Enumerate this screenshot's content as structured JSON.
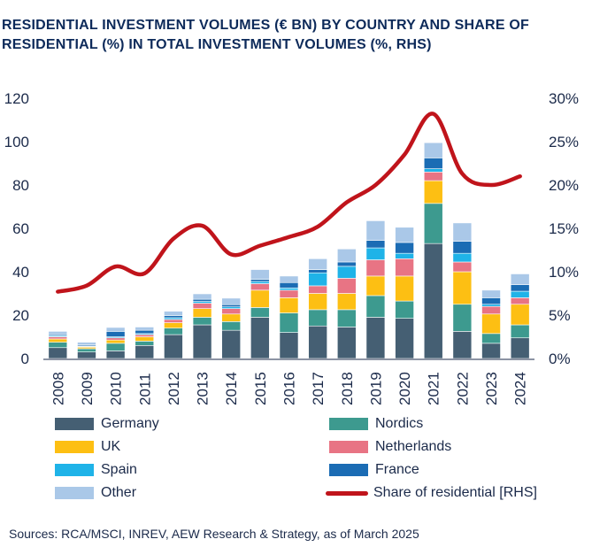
{
  "title_line1": "RESIDENTIAL INVESTMENT VOLUMES (€ BN) BY COUNTRY AND SHARE OF",
  "title_line2": "RESIDENTIAL (%) IN TOTAL INVESTMENT VOLUMES (%, RHS)",
  "source": "Sources: RCA/MSCI, INREV, AEW Research & Strategy, as of March 2025",
  "chart_data": {
    "type": "bar",
    "stacked": true,
    "categories": [
      "2008",
      "2009",
      "2010",
      "2011",
      "2012",
      "2013",
      "2014",
      "2015",
      "2016",
      "2017",
      "2018",
      "2019",
      "2020",
      "2021",
      "2022",
      "2023",
      "2024"
    ],
    "series": [
      {
        "name": "Germany",
        "color": "#455f73",
        "values": [
          5,
          3,
          3.5,
          6,
          11,
          15.5,
          13,
          19,
          12,
          15,
          14.5,
          19,
          18.5,
          53,
          12.5,
          7,
          9.5
        ]
      },
      {
        "name": "Nordics",
        "color": "#3d9a8f",
        "values": [
          2.5,
          1.5,
          3.5,
          2,
          3,
          3.5,
          4,
          4.5,
          9,
          7.5,
          8,
          10,
          8,
          18.5,
          12.5,
          4.5,
          6
        ]
      },
      {
        "name": "UK",
        "color": "#fdbf13",
        "values": [
          1.5,
          0.7,
          1.5,
          2,
          2.5,
          4,
          3.5,
          8,
          7,
          7.5,
          7.5,
          9,
          11.5,
          10.5,
          15,
          9,
          9.5
        ]
      },
      {
        "name": "Netherlands",
        "color": "#e87484",
        "values": [
          1,
          0.3,
          1,
          1,
          1.5,
          2.5,
          2.5,
          3,
          3.5,
          3.5,
          7,
          7.5,
          8,
          4,
          4.5,
          3.5,
          3
        ]
      },
      {
        "name": "Spain",
        "color": "#1fb3e8",
        "values": [
          0.5,
          0.2,
          0.5,
          0.5,
          0.8,
          0.8,
          0.8,
          1,
          1,
          6,
          5.5,
          5.5,
          2.5,
          1.5,
          4,
          1,
          3
        ]
      },
      {
        "name": "France",
        "color": "#1b6cb4",
        "values": [
          0.5,
          0.5,
          2.5,
          1.5,
          1,
          1,
          1,
          1,
          2.5,
          1.5,
          2,
          3.5,
          5,
          5,
          5.5,
          3,
          3
        ]
      },
      {
        "name": "Other",
        "color": "#aac8e8",
        "values": [
          1.5,
          1.3,
          1.8,
          1.5,
          2,
          2.5,
          3,
          4.5,
          3,
          5,
          6,
          9,
          7,
          7,
          8.5,
          3.5,
          5
        ]
      }
    ],
    "line_series": {
      "name": "Share of residential [RHS]",
      "color": "#c0141b",
      "axis": "right",
      "values": [
        7.7,
        8.4,
        10.6,
        9.8,
        13.8,
        15.3,
        12,
        13,
        14,
        15.2,
        18,
        20,
        23.5,
        28.2,
        21.3,
        20,
        21
      ]
    },
    "y_left": {
      "min": 0,
      "max": 120,
      "ticks": [
        "0",
        "20",
        "40",
        "60",
        "80",
        "100",
        "120"
      ]
    },
    "y_right": {
      "min": 0,
      "max": 30,
      "ticks": [
        "0%",
        "5%",
        "10%",
        "15%",
        "20%",
        "25%",
        "30%"
      ]
    },
    "grid": false,
    "legend": "bottom, two columns"
  }
}
